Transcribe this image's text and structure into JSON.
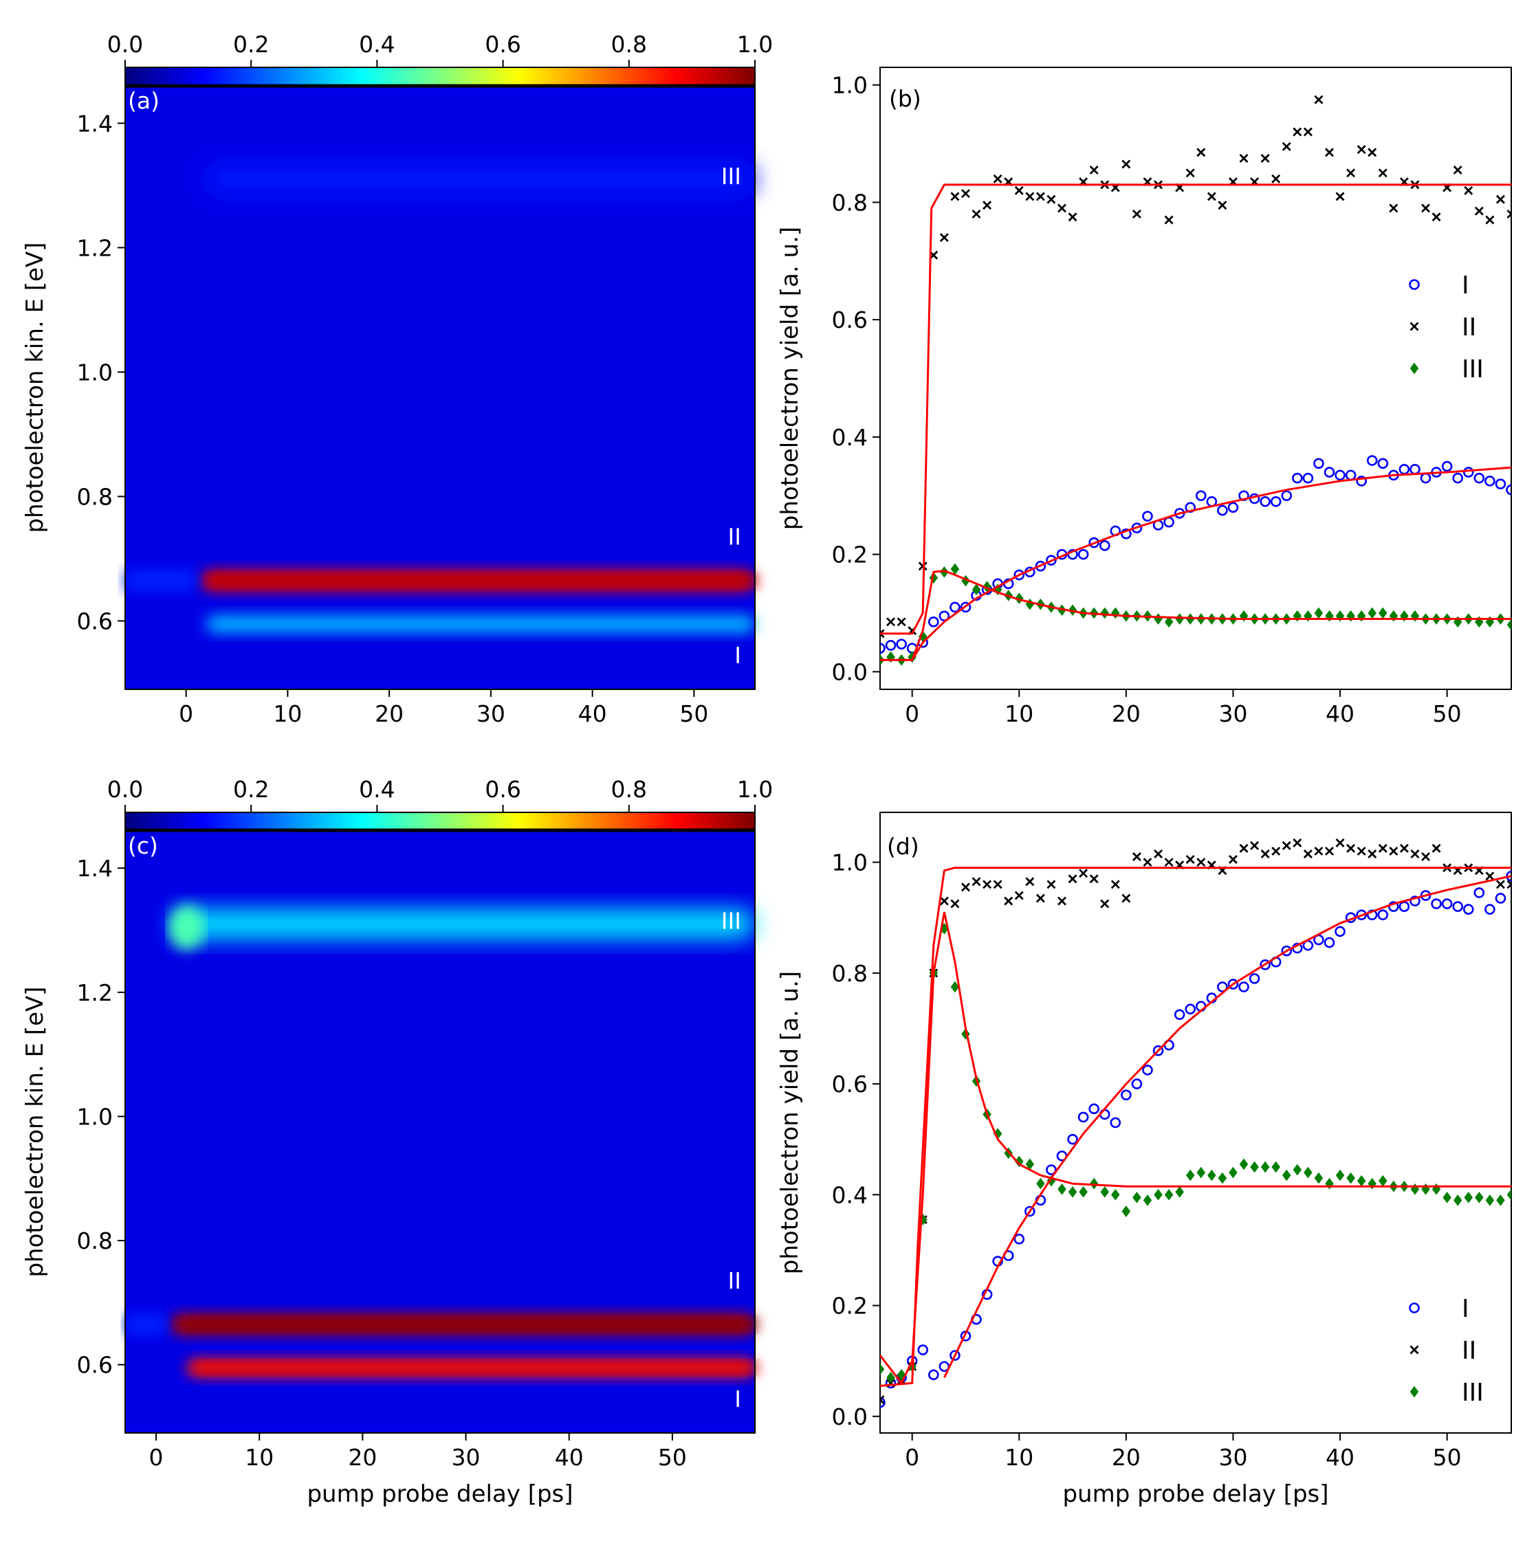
{
  "colorbar": {
    "ticks": [
      "0.0",
      "0.2",
      "0.4",
      "0.6",
      "0.8",
      "1.0"
    ],
    "colors": [
      "#00007f",
      "#0000ff",
      "#007fff",
      "#00ffff",
      "#7fff7f",
      "#ffff00",
      "#ff7f00",
      "#ff0000",
      "#7f0000"
    ]
  },
  "labels": {
    "xlabel": "pump probe delay [ps]",
    "ylabel_map": "photoelectron kin. E [eV]",
    "ylabel_yield": "photoelectron yield [a. u.]"
  },
  "chart_data": [
    {
      "panel": "(a)",
      "type": "heatmap",
      "title": "",
      "xlabel": "",
      "ylabel": "photoelectron kin. E [eV]",
      "xlim": [
        -6,
        56
      ],
      "ylim": [
        0.49,
        1.46
      ],
      "xticks": [
        0,
        10,
        20,
        30,
        40,
        50
      ],
      "yticks": [
        0.6,
        0.8,
        1.0,
        1.2,
        1.4
      ],
      "colorbar_range": [
        0.0,
        1.0
      ],
      "bands": [
        {
          "label": "I",
          "energy": 0.595,
          "onset": 2,
          "peak_intensity": 0.3
        },
        {
          "label": "II",
          "energy": 0.665,
          "onset": 1.5,
          "peak_intensity": 0.9
        },
        {
          "label": "III",
          "energy": 1.31,
          "onset": 2,
          "peak_intensity": 0.15
        }
      ]
    },
    {
      "panel": "(b)",
      "type": "scatter",
      "title": "",
      "xlabel": "",
      "ylabel": "photoelectron yield [a. u.]",
      "xlim": [
        -3,
        56
      ],
      "ylim": [
        -0.03,
        1.03
      ],
      "xticks": [
        0,
        10,
        20,
        30,
        40,
        50
      ],
      "yticks": [
        0.0,
        0.2,
        0.4,
        0.6,
        0.8,
        1.0
      ],
      "legend": [
        "I",
        "II",
        "III"
      ],
      "legend_position": "center-right",
      "x": [
        -3,
        -2,
        -1,
        0,
        1,
        2,
        3,
        4,
        5,
        6,
        7,
        8,
        9,
        10,
        11,
        12,
        13,
        14,
        15,
        16,
        17,
        18,
        19,
        20,
        21,
        22,
        23,
        24,
        25,
        26,
        27,
        28,
        29,
        30,
        31,
        32,
        33,
        34,
        35,
        36,
        37,
        38,
        39,
        40,
        41,
        42,
        43,
        44,
        45,
        46,
        47,
        48,
        49,
        50,
        51,
        52,
        53,
        54,
        55,
        56
      ],
      "series": [
        {
          "name": "I",
          "marker": "circle",
          "color": "#0000ff",
          "values": [
            0.04,
            0.045,
            0.047,
            0.04,
            0.05,
            0.085,
            0.095,
            0.11,
            0.11,
            0.13,
            0.14,
            0.15,
            0.15,
            0.165,
            0.17,
            0.18,
            0.19,
            0.2,
            0.2,
            0.2,
            0.22,
            0.215,
            0.24,
            0.235,
            0.245,
            0.265,
            0.25,
            0.255,
            0.27,
            0.28,
            0.3,
            0.29,
            0.275,
            0.28,
            0.3,
            0.295,
            0.29,
            0.29,
            0.3,
            0.33,
            0.33,
            0.355,
            0.34,
            0.335,
            0.335,
            0.325,
            0.36,
            0.355,
            0.335,
            0.345,
            0.345,
            0.33,
            0.34,
            0.35,
            0.33,
            0.34,
            0.33,
            0.325,
            0.32,
            0.31
          ]
        },
        {
          "name": "II",
          "marker": "x",
          "color": "#000000",
          "values": [
            0.065,
            0.085,
            0.085,
            0.07,
            0.18,
            0.71,
            0.74,
            0.81,
            0.815,
            0.78,
            0.795,
            0.84,
            0.835,
            0.82,
            0.81,
            0.81,
            0.805,
            0.79,
            0.775,
            0.835,
            0.855,
            0.83,
            0.825,
            0.865,
            0.78,
            0.835,
            0.83,
            0.77,
            0.825,
            0.85,
            0.885,
            0.81,
            0.795,
            0.835,
            0.875,
            0.835,
            0.875,
            0.84,
            0.895,
            0.92,
            0.92,
            0.975,
            0.885,
            0.81,
            0.85,
            0.89,
            0.885,
            0.85,
            0.79,
            0.835,
            0.83,
            0.79,
            0.775,
            0.825,
            0.855,
            0.82,
            0.785,
            0.77,
            0.805,
            0.78
          ]
        },
        {
          "name": "III",
          "marker": "diamond",
          "color": "#008000",
          "values": [
            0.02,
            0.025,
            0.02,
            0.025,
            0.06,
            0.16,
            0.17,
            0.175,
            0.155,
            0.14,
            0.145,
            0.14,
            0.13,
            0.125,
            0.115,
            0.115,
            0.11,
            0.105,
            0.105,
            0.1,
            0.1,
            0.1,
            0.1,
            0.095,
            0.095,
            0.095,
            0.09,
            0.085,
            0.09,
            0.09,
            0.09,
            0.09,
            0.09,
            0.09,
            0.095,
            0.09,
            0.09,
            0.09,
            0.09,
            0.095,
            0.095,
            0.1,
            0.095,
            0.095,
            0.095,
            0.095,
            0.1,
            0.1,
            0.095,
            0.095,
            0.095,
            0.09,
            0.09,
            0.09,
            0.085,
            0.09,
            0.085,
            0.085,
            0.09,
            0.08
          ]
        }
      ],
      "fits": [
        {
          "name": "II fit",
          "x": [
            -3,
            0,
            1,
            1.8,
            3,
            56
          ],
          "values": [
            0.065,
            0.065,
            0.1,
            0.79,
            0.83,
            0.83
          ]
        },
        {
          "name": "I fit",
          "x": [
            -3,
            0,
            1,
            3,
            6,
            10,
            15,
            20,
            25,
            30,
            35,
            40,
            45,
            50,
            56
          ],
          "values": [
            0.02,
            0.02,
            0.05,
            0.085,
            0.125,
            0.165,
            0.205,
            0.24,
            0.27,
            0.29,
            0.31,
            0.325,
            0.335,
            0.34,
            0.348
          ]
        },
        {
          "name": "III fit",
          "x": [
            -3,
            0,
            1,
            2,
            3,
            4,
            6,
            8,
            10,
            13,
            16,
            20,
            25,
            30,
            40,
            56
          ],
          "values": [
            0.02,
            0.02,
            0.07,
            0.17,
            0.172,
            0.165,
            0.15,
            0.135,
            0.123,
            0.11,
            0.1,
            0.095,
            0.092,
            0.09,
            0.09,
            0.09
          ]
        }
      ]
    },
    {
      "panel": "(c)",
      "type": "heatmap",
      "title": "",
      "xlabel": "pump probe delay [ps]",
      "ylabel": "photoelectron kin. E [eV]",
      "xlim": [
        -3,
        58
      ],
      "ylim": [
        0.49,
        1.46
      ],
      "xticks": [
        0,
        10,
        20,
        30,
        40,
        50
      ],
      "yticks": [
        0.6,
        0.8,
        1.0,
        1.2,
        1.4
      ],
      "colorbar_range": [
        0.0,
        1.0
      ],
      "bands": [
        {
          "label": "I",
          "energy": 0.595,
          "onset": 3,
          "peak_intensity": 0.85
        },
        {
          "label": "II",
          "energy": 0.665,
          "onset": 1.5,
          "peak_intensity": 0.95
        },
        {
          "label": "III",
          "energy": 1.31,
          "onset": 1.5,
          "peak_intensity": 0.35
        }
      ]
    },
    {
      "panel": "(d)",
      "type": "scatter",
      "title": "",
      "xlabel": "pump probe delay [ps]",
      "ylabel": "photoelectron yield [a. u.]",
      "xlim": [
        -3,
        56
      ],
      "ylim": [
        -0.03,
        1.09
      ],
      "xticks": [
        0,
        10,
        20,
        30,
        40,
        50
      ],
      "yticks": [
        0.0,
        0.2,
        0.4,
        0.6,
        0.8,
        1.0
      ],
      "legend": [
        "I",
        "II",
        "III"
      ],
      "legend_position": "bottom-right",
      "x": [
        -3,
        -2,
        -1,
        0,
        1,
        2,
        3,
        4,
        5,
        6,
        7,
        8,
        9,
        10,
        11,
        12,
        13,
        14,
        15,
        16,
        17,
        18,
        19,
        20,
        21,
        22,
        23,
        24,
        25,
        26,
        27,
        28,
        29,
        30,
        31,
        32,
        33,
        34,
        35,
        36,
        37,
        38,
        39,
        40,
        41,
        42,
        43,
        44,
        45,
        46,
        47,
        48,
        49,
        50,
        51,
        52,
        53,
        54,
        55,
        56
      ],
      "series": [
        {
          "name": "I",
          "marker": "circle",
          "color": "#0000ff",
          "values": [
            0.025,
            0.06,
            0.07,
            0.1,
            0.12,
            0.075,
            0.09,
            0.11,
            0.145,
            0.175,
            0.22,
            0.28,
            0.29,
            0.32,
            0.37,
            0.39,
            0.445,
            0.47,
            0.5,
            0.54,
            0.555,
            0.545,
            0.53,
            0.58,
            0.6,
            0.625,
            0.66,
            0.67,
            0.725,
            0.735,
            0.74,
            0.755,
            0.775,
            0.78,
            0.775,
            0.79,
            0.815,
            0.82,
            0.84,
            0.845,
            0.85,
            0.86,
            0.855,
            0.875,
            0.9,
            0.905,
            0.905,
            0.905,
            0.92,
            0.92,
            0.93,
            0.94,
            0.925,
            0.925,
            0.92,
            0.915,
            0.945,
            0.915,
            0.935,
            0.975
          ]
        },
        {
          "name": "II",
          "marker": "x",
          "color": "#000000",
          "values": [
            0.03,
            0.06,
            0.065,
            0.09,
            0.355,
            0.8,
            0.93,
            0.925,
            0.955,
            0.965,
            0.96,
            0.96,
            0.93,
            0.94,
            0.965,
            0.935,
            0.96,
            0.93,
            0.97,
            0.98,
            0.97,
            0.925,
            0.96,
            0.935,
            1.01,
            1.0,
            1.015,
            1.0,
            0.995,
            1.005,
            1.0,
            0.995,
            0.985,
            1.005,
            1.025,
            1.03,
            1.015,
            1.02,
            1.03,
            1.035,
            1.015,
            1.02,
            1.02,
            1.035,
            1.025,
            1.02,
            1.015,
            1.025,
            1.02,
            1.025,
            1.015,
            1.01,
            1.025,
            0.99,
            0.985,
            0.99,
            0.985,
            0.975,
            0.96,
            0.96
          ]
        },
        {
          "name": "III",
          "marker": "diamond",
          "color": "#008000",
          "values": [
            0.085,
            0.07,
            0.075,
            0.09,
            0.355,
            0.8,
            0.88,
            0.775,
            0.69,
            0.605,
            0.545,
            0.51,
            0.475,
            0.46,
            0.455,
            0.42,
            0.425,
            0.41,
            0.405,
            0.405,
            0.42,
            0.405,
            0.4,
            0.37,
            0.395,
            0.39,
            0.4,
            0.4,
            0.405,
            0.435,
            0.44,
            0.435,
            0.43,
            0.44,
            0.455,
            0.45,
            0.45,
            0.45,
            0.435,
            0.445,
            0.44,
            0.43,
            0.42,
            0.435,
            0.43,
            0.425,
            0.42,
            0.425,
            0.415,
            0.415,
            0.41,
            0.41,
            0.41,
            0.395,
            0.39,
            0.395,
            0.395,
            0.39,
            0.39,
            0.4
          ]
        }
      ],
      "fits": [
        {
          "name": "II fit",
          "x": [
            -3,
            0,
            0.5,
            2,
            3,
            4,
            56
          ],
          "values": [
            0.055,
            0.06,
            0.3,
            0.85,
            0.985,
            0.99,
            0.99
          ]
        },
        {
          "name": "I fit",
          "x": [
            3,
            5,
            8,
            10,
            13,
            16,
            20,
            25,
            30,
            35,
            40,
            45,
            50,
            56
          ],
          "values": [
            0.07,
            0.15,
            0.27,
            0.34,
            0.43,
            0.51,
            0.6,
            0.7,
            0.78,
            0.84,
            0.89,
            0.925,
            0.95,
            0.975
          ]
        },
        {
          "name": "III fit",
          "x": [
            -3,
            -1,
            0,
            1,
            2,
            3,
            4,
            5,
            6,
            7,
            8,
            10,
            12,
            15,
            20,
            30,
            56
          ],
          "values": [
            0.11,
            0.06,
            0.1,
            0.4,
            0.8,
            0.91,
            0.82,
            0.7,
            0.61,
            0.545,
            0.5,
            0.455,
            0.435,
            0.42,
            0.415,
            0.415,
            0.415
          ]
        }
      ]
    }
  ]
}
